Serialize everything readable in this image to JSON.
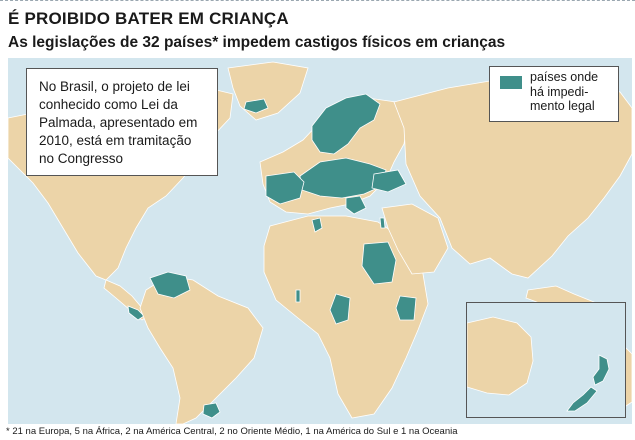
{
  "title": "É PROIBIDO BATER EM CRIANÇA",
  "subtitle": "As legislações de 32 países* impedem castigos físicos em crianças",
  "info_box": {
    "lines": [
      "No Brasil, o projeto de lei",
      "conhecido como Lei da",
      "Palmada, apresentado em",
      "2010, está em tramitação",
      "no Congresso"
    ]
  },
  "legend": {
    "lines": [
      "países onde",
      "há impedi-",
      "mento legal"
    ],
    "color": "#3f8f8a"
  },
  "colors": {
    "ocean": "#d3e6ee",
    "land": "#ecd4a8",
    "ban": "#3f8f8a"
  },
  "footnote": "* 21 na Europa, 5 na África, 2 na América Central, 2 no Oriente Médio, 1 na América do Sul e 1 na Oceania"
}
